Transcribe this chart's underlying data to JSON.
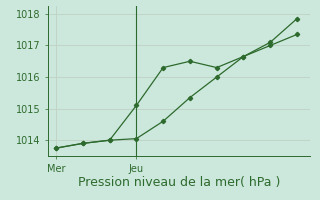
{
  "line1_x": [
    0,
    1,
    2,
    3,
    4,
    5,
    6,
    7,
    8,
    9
  ],
  "line1_y": [
    1013.75,
    1013.9,
    1014.0,
    1015.1,
    1016.3,
    1016.5,
    1016.3,
    1016.65,
    1017.0,
    1017.35
  ],
  "line2_x": [
    0,
    1,
    2,
    3,
    4,
    5,
    6,
    7,
    8,
    9
  ],
  "line2_y": [
    1013.75,
    1013.9,
    1014.0,
    1014.05,
    1014.6,
    1015.35,
    1016.0,
    1016.65,
    1017.1,
    1017.85
  ],
  "line_color": "#2d6a2d",
  "bg_color": "#cce8dc",
  "grid_color": "#c0d4c8",
  "xlabel": "Pression niveau de la mer( hPa )",
  "ylim": [
    1013.5,
    1018.25
  ],
  "yticks": [
    1014,
    1015,
    1016,
    1017,
    1018
  ],
  "xtick_positions": [
    0,
    3
  ],
  "xtick_labels": [
    "Mer",
    "Jeu"
  ],
  "vline_x": 3,
  "xlabel_fontsize": 9
}
